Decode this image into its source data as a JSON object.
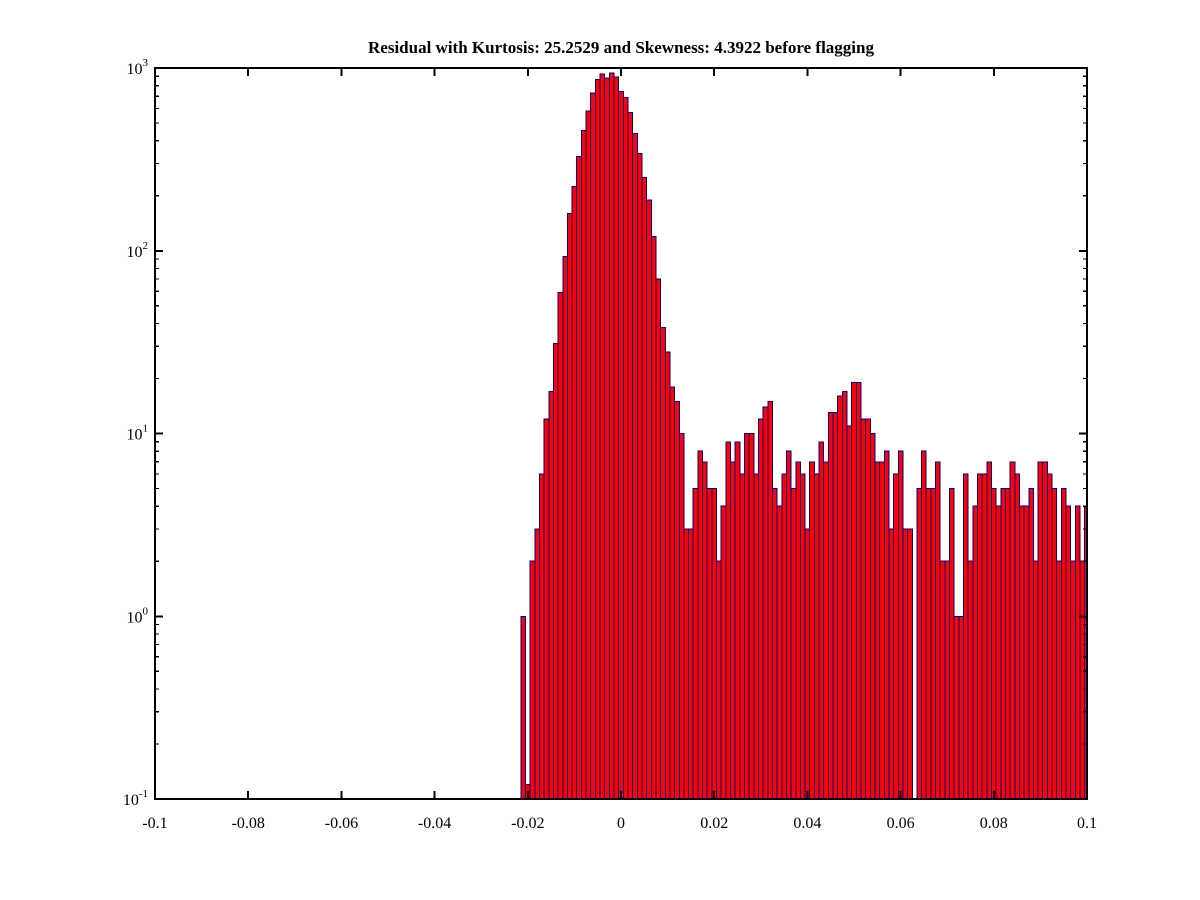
{
  "title": "Residual with Kurtosis: 25.2529 and Skewness: 4.3922 before flagging",
  "colors": {
    "bar_fill": "#ff0000",
    "bar_edge": "#000080",
    "axis": "#000000",
    "background": "#ffffff"
  },
  "chart_data": {
    "type": "bar",
    "title": "Residual with Kurtosis: 25.2529 and Skewness: 4.3922 before flagging",
    "xlabel": "",
    "ylabel": "",
    "grid": false,
    "legend": null,
    "y_scale": "log",
    "x_range": [
      -0.1,
      0.1
    ],
    "y_range_exponents": [
      -1,
      3
    ],
    "x_ticks": [
      -0.1,
      -0.08,
      -0.06,
      -0.04,
      -0.02,
      0,
      0.02,
      0.04,
      0.06,
      0.08,
      0.1
    ],
    "x_tick_labels": [
      "-0.1",
      "-0.08",
      "-0.06",
      "-0.04",
      "-0.02",
      "0",
      "0.02",
      "0.04",
      "0.06",
      "0.08",
      "0.1"
    ],
    "y_tick_exponents": [
      3,
      2,
      1,
      0,
      -1
    ],
    "y_tick_base": "10",
    "bin_width": 0.001,
    "bin_start_center": -0.021,
    "bin_centers": [
      -0.021,
      -0.02,
      -0.019,
      -0.018,
      -0.017,
      -0.016,
      -0.015,
      -0.014,
      -0.013,
      -0.012,
      -0.011,
      -0.01,
      -0.009,
      -0.008,
      -0.007,
      -0.006,
      -0.005,
      -0.004,
      -0.003,
      -0.002,
      -0.001,
      0.0,
      0.001,
      0.002,
      0.003,
      0.004,
      0.005,
      0.006,
      0.007,
      0.008,
      0.009,
      0.01,
      0.011,
      0.012,
      0.013,
      0.014,
      0.015,
      0.016,
      0.017,
      0.018,
      0.019,
      0.02,
      0.021,
      0.022,
      0.023,
      0.024,
      0.025,
      0.026,
      0.027,
      0.028,
      0.029,
      0.03,
      0.031,
      0.032,
      0.033,
      0.034,
      0.035,
      0.036,
      0.037,
      0.038,
      0.039,
      0.04,
      0.041,
      0.042,
      0.043,
      0.044,
      0.045,
      0.046,
      0.047,
      0.048,
      0.049,
      0.05,
      0.051,
      0.052,
      0.053,
      0.054,
      0.055,
      0.056,
      0.057,
      0.058,
      0.059,
      0.06,
      0.061,
      0.062,
      0.063,
      0.064,
      0.065,
      0.066,
      0.067,
      0.068,
      0.069,
      0.07,
      0.071,
      0.072,
      0.073,
      0.074,
      0.075,
      0.076,
      0.077,
      0.078,
      0.079,
      0.08,
      0.081,
      0.082,
      0.083,
      0.084,
      0.085,
      0.086,
      0.087,
      0.088,
      0.089,
      0.09,
      0.091,
      0.092,
      0.093,
      0.094,
      0.095,
      0.096,
      0.097,
      0.098,
      0.099,
      0.1
    ],
    "counts": [
      1,
      0.12,
      2,
      3,
      6,
      12,
      17,
      31,
      59,
      93,
      160,
      224,
      327,
      454,
      582,
      731,
      863,
      930,
      884,
      941,
      895,
      744,
      688,
      570,
      438,
      340,
      251,
      189,
      120,
      70,
      38,
      28,
      18,
      15,
      10,
      3,
      3,
      5,
      8,
      7,
      5,
      5,
      2,
      4,
      9,
      7,
      9,
      6,
      10,
      10,
      6,
      12,
      14,
      15,
      5,
      4,
      6,
      8,
      5,
      7,
      6,
      3,
      7,
      6,
      9,
      7,
      13,
      13,
      16,
      17,
      11,
      19,
      19,
      12,
      12,
      10,
      7,
      7,
      8,
      3,
      6,
      8,
      3,
      3,
      0,
      5,
      8,
      5,
      5,
      7,
      2,
      2,
      5,
      1,
      1,
      6,
      2,
      4,
      6,
      6,
      7,
      5,
      4,
      5,
      5,
      7,
      6,
      4,
      4,
      5,
      2,
      7,
      7,
      6,
      5,
      2,
      5,
      4,
      2,
      4,
      2,
      4
    ]
  }
}
